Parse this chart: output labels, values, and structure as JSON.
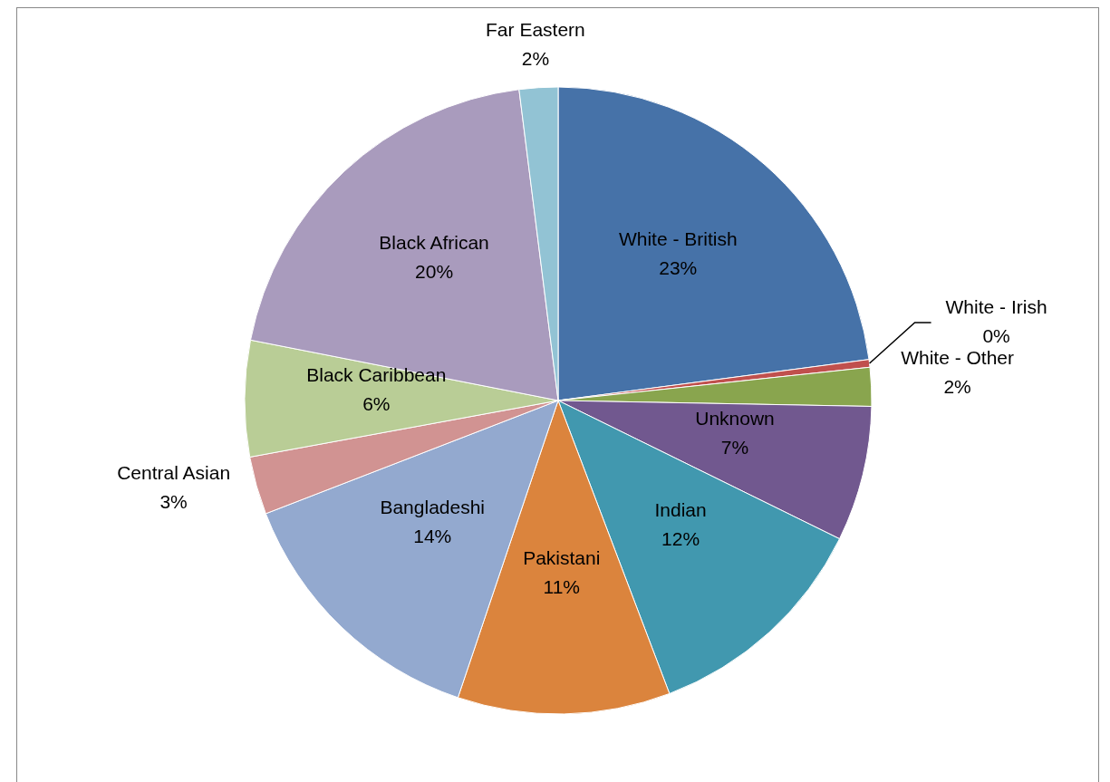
{
  "chart_data": {
    "type": "pie",
    "categories": [
      "White - British",
      "White - Irish",
      "White - Other",
      "Unknown",
      "Indian",
      "Pakistani",
      "Bangladeshi",
      "Central Asian",
      "Black Caribbean",
      "Black African",
      "Far Eastern"
    ],
    "values": [
      23,
      0.4,
      2,
      7,
      12,
      11,
      14,
      3,
      6,
      20,
      2
    ],
    "value_labels": [
      "23%",
      "0%",
      "2%",
      "7%",
      "12%",
      "11%",
      "14%",
      "3%",
      "6%",
      "20%",
      "2%"
    ],
    "colors": [
      "#4672a8",
      "#c0504d",
      "#89a54e",
      "#71588f",
      "#4198af",
      "#db843d",
      "#93a9cf",
      "#d19392",
      "#b9cd96",
      "#a99bbd",
      "#92c3d4"
    ],
    "legend": false
  }
}
